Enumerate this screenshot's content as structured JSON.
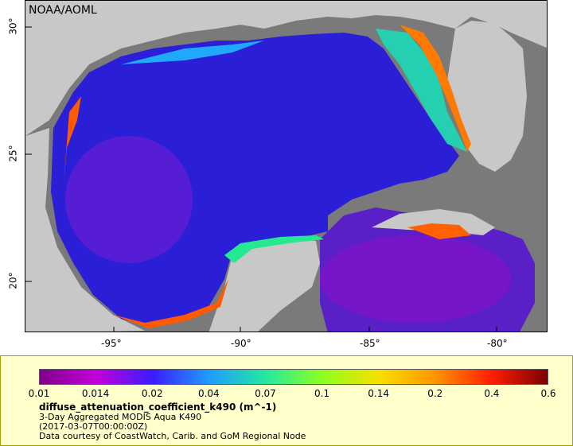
{
  "map": {
    "source": "NOAA/AOML",
    "lon_ticks": [
      "-95°",
      "-90°",
      "-85°",
      "-80°"
    ],
    "lat_ticks": [
      "30°",
      "25°",
      "20°"
    ],
    "colors": {
      "land": "#c8c8c8",
      "no_data": "#7a7a7a",
      "water_low": "#2a1fd6",
      "coast": "#ff6000"
    }
  },
  "colorbar": {
    "ticks": [
      "0.01",
      "0.014",
      "0.02",
      "0.04",
      "0.07",
      "0.1",
      "0.14",
      "0.2",
      "0.4",
      "0.6"
    ],
    "colors": [
      "#80008c",
      "#c400d8",
      "#3a1cff",
      "#1f9cff",
      "#25e8a0",
      "#8cff20",
      "#f6e000",
      "#ff9600",
      "#ff1e00",
      "#7c0000"
    ]
  },
  "legend": {
    "title": "diffuse_attenuation_coefficient_k490 (m^-1)",
    "line1": "3-Day Aggregated MODIS Aqua K490",
    "line2": "(2017-03-07T00:00:00Z)",
    "line3": "Data courtesy of CoastWatch, Carib. and GoM Regional Node"
  }
}
